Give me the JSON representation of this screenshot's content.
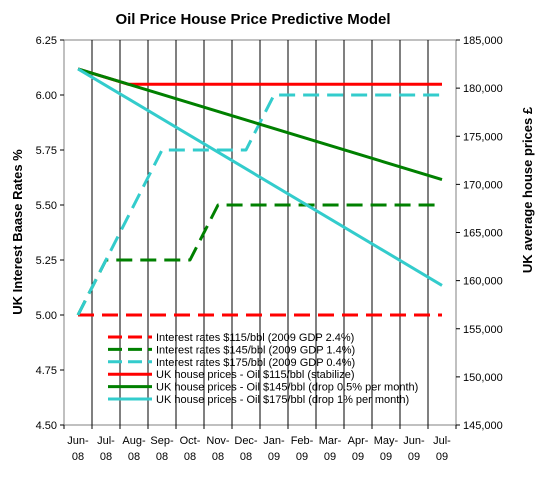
{
  "chart_data": {
    "type": "line",
    "title": "Oil Price House Price Predictive Model",
    "x": [
      "Jun-08",
      "Jul-08",
      "Aug-08",
      "Sep-08",
      "Oct-08",
      "Nov-08",
      "Dec-08",
      "Jan-09",
      "Feb-09",
      "Mar-09",
      "Apr-09",
      "May-09",
      "Jun-09",
      "Jul-09"
    ],
    "x_tick_lines": [
      [
        "Jun-",
        "08"
      ],
      [
        "Jul-",
        "08"
      ],
      [
        "Aug-",
        "08"
      ],
      [
        "Sep-",
        "08"
      ],
      [
        "Oct-",
        "08"
      ],
      [
        "Nov-",
        "08"
      ],
      [
        "Dec-",
        "08"
      ],
      [
        "Jan-",
        "09"
      ],
      [
        "Feb-",
        "09"
      ],
      [
        "Mar-",
        "09"
      ],
      [
        "Apr-",
        "09"
      ],
      [
        "May-",
        "09"
      ],
      [
        "Jun-",
        "09"
      ],
      [
        "Jul-",
        "09"
      ]
    ],
    "ylabel": "UK Interest Baase Rates %",
    "ylim": [
      4.5,
      6.25
    ],
    "y_ticks": [
      "4.50",
      "4.75",
      "5.00",
      "5.25",
      "5.50",
      "5.75",
      "6.00",
      "6.25"
    ],
    "y2label": "UK average house prices £",
    "y2lim": [
      145000,
      185000
    ],
    "y2_ticks": [
      "145,000",
      "150,000",
      "155,000",
      "160,000",
      "165,000",
      "170,000",
      "175,000",
      "180,000",
      "185,000"
    ],
    "grid": "vertical",
    "legend_position": "bottom-center",
    "series": [
      {
        "name": "Interest rates $115/bbl (2009 GDP 2.4%)",
        "axis": "left",
        "style": "dashed",
        "color": "#ff0000",
        "x": [
          0,
          13
        ],
        "values": [
          5.0,
          5.0
        ]
      },
      {
        "name": "Interest rates $145/bbl (2009 GDP 1.4%)",
        "axis": "left",
        "style": "dashed",
        "color": "#008000",
        "x": [
          0,
          1,
          3,
          4,
          5,
          13
        ],
        "values": [
          5.0,
          5.25,
          5.25,
          5.25,
          5.5,
          5.5
        ]
      },
      {
        "name": "Interest rates $175/bbl (2009 GDP 0.4%)",
        "axis": "left",
        "style": "dashed",
        "color": "#33cccc",
        "x": [
          0,
          3,
          6,
          7,
          13
        ],
        "values": [
          5.0,
          5.75,
          5.75,
          6.0,
          6.0
        ]
      },
      {
        "name": "UK house prices - Oil $115/bbl (stabilize)",
        "axis": "right",
        "style": "solid",
        "color": "#ff0000",
        "x": [
          0,
          1.8,
          13
        ],
        "values": [
          182000,
          180400,
          180400
        ]
      },
      {
        "name": "UK house prices - Oil $145/bbl (drop 0.5% per month)",
        "axis": "right",
        "style": "solid",
        "color": "#008000",
        "x": [
          0,
          13
        ],
        "values": [
          182000,
          170500
        ]
      },
      {
        "name": "UK house prices - Oil $175/bbl (drop 1% per month)",
        "axis": "right",
        "style": "solid",
        "color": "#33cccc",
        "x": [
          0,
          13
        ],
        "values": [
          182000,
          159500
        ]
      }
    ]
  }
}
